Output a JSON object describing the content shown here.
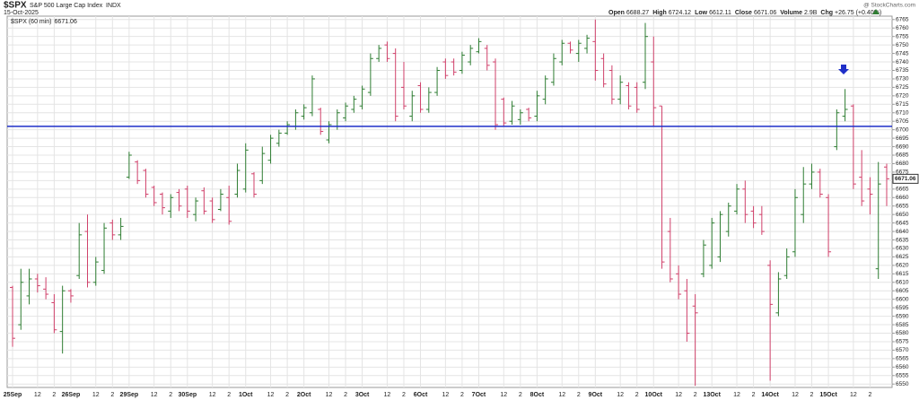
{
  "chart_data": {
    "type": "ohlc",
    "symbol": "$SPX",
    "title": "S&P 500 Large Cap Index",
    "exchange": "INDX",
    "date": "15-Oct-2025",
    "source": "@ StockCharts.com",
    "quote": [
      {
        "label": "Open",
        "value": "6688.27"
      },
      {
        "label": "High",
        "value": "6724.12"
      },
      {
        "label": "Low",
        "value": "6612.11"
      },
      {
        "label": "Close",
        "value": "6671.06"
      },
      {
        "label": "Volume",
        "value": "2.9B"
      },
      {
        "label": "Chg",
        "value": "+26.75 (+0.40%)"
      }
    ],
    "legend": "$SPX (60 min)",
    "up_color": "#2e7d32",
    "down_color": "#d0406a",
    "hline": {
      "value": 6702,
      "color": "#1f2fc8"
    },
    "grid": true,
    "ylim": [
      6548,
      6767
    ],
    "yticks": [
      6550,
      6555,
      6560,
      6565,
      6570,
      6575,
      6580,
      6585,
      6590,
      6595,
      6600,
      6605,
      6610,
      6615,
      6620,
      6625,
      6630,
      6635,
      6640,
      6645,
      6650,
      6655,
      6660,
      6665,
      6670,
      6675,
      6680,
      6685,
      6690,
      6695,
      6700,
      6705,
      6710,
      6715,
      6720,
      6725,
      6730,
      6735,
      6740,
      6745,
      6750,
      6755,
      6760,
      6765
    ],
    "categories": [
      "25Sep",
      null,
      null,
      "12",
      null,
      "2",
      null,
      "26Sep",
      null,
      null,
      "12",
      null,
      "2",
      null,
      "29Sep",
      null,
      null,
      "12",
      null,
      "2",
      null,
      "30Sep",
      null,
      null,
      "12",
      null,
      "2",
      null,
      "1Oct",
      null,
      null,
      "12",
      null,
      "2",
      null,
      "2Oct",
      null,
      null,
      "12",
      null,
      "2",
      null,
      "3Oct",
      null,
      null,
      "12",
      null,
      "2",
      null,
      "6Oct",
      null,
      null,
      "12",
      null,
      "2",
      null,
      "7Oct",
      null,
      null,
      "12",
      null,
      "2",
      null,
      "8Oct",
      null,
      null,
      "12",
      null,
      "2",
      null,
      "9Oct",
      null,
      null,
      "12",
      null,
      "2",
      null,
      "10Oct",
      null,
      null,
      "12",
      null,
      "2",
      null,
      "13Oct",
      null,
      null,
      "12",
      null,
      "2",
      null,
      "14Oct",
      null,
      null,
      "12",
      null,
      "2",
      null,
      "15Oct",
      null,
      null,
      "12",
      null,
      "2",
      null,
      null
    ],
    "ohlc": [
      [
        6607,
        6608,
        6572,
        6577
      ],
      [
        6585,
        6618,
        6582,
        6610
      ],
      [
        6602,
        6618,
        6597,
        6612
      ],
      [
        6612,
        6615,
        6604,
        6608
      ],
      [
        6606,
        6613,
        6600,
        6603
      ],
      [
        6598,
        6603,
        6580,
        6582
      ],
      [
        6581,
        6608,
        6568,
        6605
      ],
      [
        6605,
        6606,
        6598,
        6602
      ],
      [
        6614,
        6645,
        6612,
        6638
      ],
      [
        6640,
        6650,
        6607,
        6610
      ],
      [
        6610,
        6625,
        6608,
        6622
      ],
      [
        6617,
        6645,
        6615,
        6642
      ],
      [
        6645,
        6647,
        6635,
        6638
      ],
      [
        6638,
        6648,
        6635,
        6643
      ],
      [
        6672,
        6687,
        6671,
        6685
      ],
      [
        6681,
        6682,
        6668,
        6670
      ],
      [
        6676,
        6677,
        6660,
        6662
      ],
      [
        6666,
        6667,
        6655,
        6657
      ],
      [
        6662,
        6663,
        6650,
        6654
      ],
      [
        6652,
        6662,
        6648,
        6660
      ],
      [
        6663,
        6665,
        6652,
        6655
      ],
      [
        6665,
        6667,
        6648,
        6652
      ],
      [
        6650,
        6660,
        6646,
        6658
      ],
      [
        6664,
        6666,
        6650,
        6652
      ],
      [
        6658,
        6660,
        6645,
        6647
      ],
      [
        6653,
        6665,
        6652,
        6662
      ],
      [
        6660,
        6667,
        6644,
        6646
      ],
      [
        6662,
        6680,
        6660,
        6676
      ],
      [
        6665,
        6692,
        6663,
        6688
      ],
      [
        6674,
        6675,
        6660,
        6662
      ],
      [
        6670,
        6690,
        6668,
        6686
      ],
      [
        6682,
        6697,
        6680,
        6695
      ],
      [
        6692,
        6700,
        6690,
        6698
      ],
      [
        6698,
        6705,
        6697,
        6703
      ],
      [
        6702,
        6712,
        6700,
        6710
      ],
      [
        6708,
        6715,
        6706,
        6713
      ],
      [
        6710,
        6732,
        6708,
        6730
      ],
      [
        6712,
        6713,
        6697,
        6699
      ],
      [
        6694,
        6705,
        6692,
        6703
      ],
      [
        6702,
        6712,
        6700,
        6710
      ],
      [
        6707,
        6716,
        6705,
        6714
      ],
      [
        6712,
        6720,
        6710,
        6718
      ],
      [
        6714,
        6726,
        6712,
        6724
      ],
      [
        6722,
        6745,
        6720,
        6742
      ],
      [
        6742,
        6750,
        6740,
        6748
      ],
      [
        6750,
        6752,
        6740,
        6742
      ],
      [
        6745,
        6748,
        6705,
        6708
      ],
      [
        6725,
        6740,
        6712,
        6714
      ],
      [
        6708,
        6723,
        6705,
        6720
      ],
      [
        6726,
        6728,
        6710,
        6712
      ],
      [
        6712,
        6725,
        6710,
        6722
      ],
      [
        6722,
        6737,
        6720,
        6735
      ],
      [
        6740,
        6742,
        6730,
        6732
      ],
      [
        6740,
        6742,
        6732,
        6734
      ],
      [
        6735,
        6746,
        6733,
        6744
      ],
      [
        6740,
        6750,
        6738,
        6748
      ],
      [
        6746,
        6754,
        6745,
        6752
      ],
      [
        6748,
        6750,
        6735,
        6738
      ],
      [
        6740,
        6742,
        6700,
        6703
      ],
      [
        6718,
        6719,
        6702,
        6704
      ],
      [
        6705,
        6717,
        6703,
        6714
      ],
      [
        6706,
        6712,
        6703,
        6710
      ],
      [
        6712,
        6713,
        6705,
        6707
      ],
      [
        6708,
        6723,
        6705,
        6720
      ],
      [
        6718,
        6732,
        6715,
        6730
      ],
      [
        6728,
        6745,
        6726,
        6742
      ],
      [
        6740,
        6753,
        6738,
        6751
      ],
      [
        6751,
        6752,
        6745,
        6747
      ],
      [
        6745,
        6753,
        6740,
        6751
      ],
      [
        6748,
        6756,
        6745,
        6754
      ],
      [
        6752,
        6765,
        6729,
        6735
      ],
      [
        6742,
        6745,
        6725,
        6727
      ],
      [
        6735,
        6738,
        6715,
        6718
      ],
      [
        6718,
        6732,
        6715,
        6728
      ],
      [
        6726,
        6728,
        6712,
        6714
      ],
      [
        6725,
        6728,
        6710,
        6712
      ],
      [
        6728,
        6763,
        6724,
        6755
      ],
      [
        6740,
        6755,
        6702,
        6713
      ],
      [
        6714,
        6714,
        6618,
        6622
      ],
      [
        6640,
        6648,
        6610,
        6612
      ],
      [
        6615,
        6620,
        6600,
        6603
      ],
      [
        6605,
        6612,
        6575,
        6580
      ],
      [
        6596,
        6603,
        6549,
        6592
      ],
      [
        6615,
        6635,
        6613,
        6632
      ],
      [
        6620,
        6648,
        6618,
        6645
      ],
      [
        6625,
        6652,
        6622,
        6650
      ],
      [
        6640,
        6657,
        6637,
        6655
      ],
      [
        6652,
        6668,
        6650,
        6665
      ],
      [
        6665,
        6670,
        6645,
        6650
      ],
      [
        6652,
        6655,
        6642,
        6645
      ],
      [
        6650,
        6655,
        6638,
        6640
      ],
      [
        6620,
        6623,
        6552,
        6597
      ],
      [
        6592,
        6616,
        6590,
        6612
      ],
      [
        6614,
        6630,
        6612,
        6625
      ],
      [
        6628,
        6665,
        6625,
        6660
      ],
      [
        6650,
        6678,
        6645,
        6668
      ],
      [
        6668,
        6680,
        6665,
        6675
      ],
      [
        6675,
        6677,
        6660,
        6662
      ],
      [
        6660,
        6662,
        6625,
        6628
      ],
      [
        6690,
        6712,
        6688,
        6710
      ],
      [
        6708,
        6724,
        6705,
        6712
      ],
      [
        6714,
        6715,
        6665,
        6668
      ],
      [
        6672,
        6688,
        6655,
        6658
      ],
      [
        6665,
        6672,
        6650,
        6662
      ],
      [
        6618,
        6681,
        6612,
        6668
      ],
      [
        6678,
        6680,
        6655,
        6671.06
      ]
    ]
  }
}
